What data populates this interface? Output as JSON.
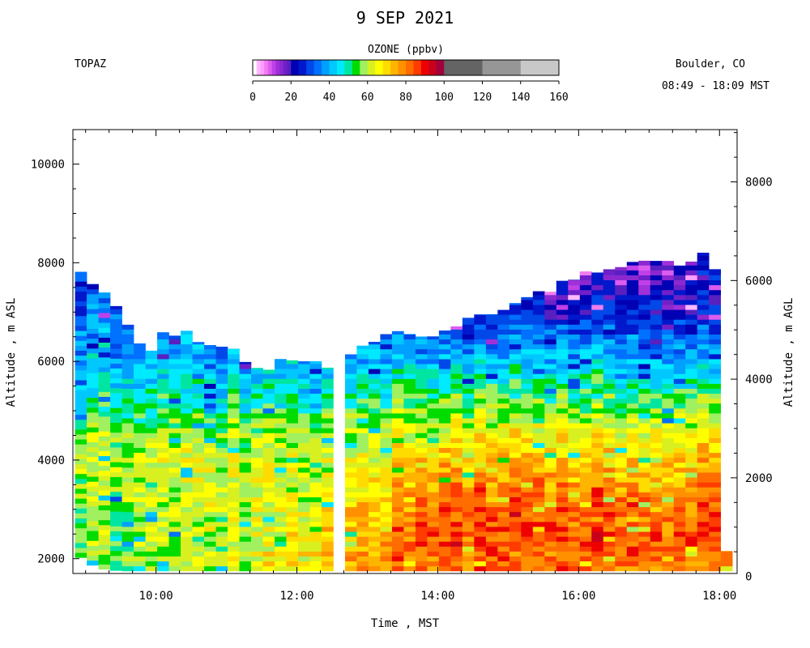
{
  "title": "9 SEP 2021",
  "station": "TOPAZ",
  "location": "Boulder, CO",
  "time_range": "08:49 - 18:09 MST",
  "colorbar": {
    "title": "OZONE (ppbv)",
    "ticks": [
      0,
      20,
      40,
      60,
      80,
      100,
      120,
      140,
      160
    ],
    "range": [
      0,
      160
    ],
    "bins": [
      {
        "from": 0,
        "to": 2,
        "color": "#ffffff"
      },
      {
        "from": 2,
        "to": 4,
        "color": "#ffb8ff"
      },
      {
        "from": 4,
        "to": 6,
        "color": "#ff9cff"
      },
      {
        "from": 6,
        "to": 8,
        "color": "#f07cf0"
      },
      {
        "from": 8,
        "to": 10,
        "color": "#dc5cf0"
      },
      {
        "from": 10,
        "to": 12,
        "color": "#c040e8"
      },
      {
        "from": 12,
        "to": 14,
        "color": "#a030d8"
      },
      {
        "from": 14,
        "to": 16,
        "color": "#8c28d0"
      },
      {
        "from": 16,
        "to": 18,
        "color": "#7020c8"
      },
      {
        "from": 18,
        "to": 20,
        "color": "#5820c0"
      },
      {
        "from": 20,
        "to": 24,
        "color": "#0000b4"
      },
      {
        "from": 24,
        "to": 28,
        "color": "#0018cc"
      },
      {
        "from": 28,
        "to": 32,
        "color": "#0048e8"
      },
      {
        "from": 32,
        "to": 36,
        "color": "#0070ff"
      },
      {
        "from": 36,
        "to": 40,
        "color": "#00a0ff"
      },
      {
        "from": 40,
        "to": 44,
        "color": "#00c8ff"
      },
      {
        "from": 44,
        "to": 48,
        "color": "#00eaff"
      },
      {
        "from": 48,
        "to": 52,
        "color": "#00e6a0"
      },
      {
        "from": 52,
        "to": 56,
        "color": "#00dc00"
      },
      {
        "from": 56,
        "to": 60,
        "color": "#a0f060"
      },
      {
        "from": 60,
        "to": 64,
        "color": "#d8f020"
      },
      {
        "from": 64,
        "to": 68,
        "color": "#ffff00"
      },
      {
        "from": 68,
        "to": 72,
        "color": "#ffdc00"
      },
      {
        "from": 72,
        "to": 76,
        "color": "#ffb400"
      },
      {
        "from": 76,
        "to": 80,
        "color": "#ff9000"
      },
      {
        "from": 80,
        "to": 84,
        "color": "#ff6c00"
      },
      {
        "from": 84,
        "to": 88,
        "color": "#ff3c00"
      },
      {
        "from": 88,
        "to": 92,
        "color": "#ee0000"
      },
      {
        "from": 92,
        "to": 96,
        "color": "#c8001c"
      },
      {
        "from": 96,
        "to": 100,
        "color": "#a0003c"
      },
      {
        "from": 100,
        "to": 120,
        "color": "#646464"
      },
      {
        "from": 120,
        "to": 140,
        "color": "#969696"
      },
      {
        "from": 140,
        "to": 160,
        "color": "#c8c8c8"
      }
    ]
  },
  "chart_data": {
    "type": "heatmap",
    "title": "9 SEP 2021",
    "xlabel": "Time , MST",
    "ylabel_left": "Altitude , m ASL",
    "ylabel_right": "Altitude , m AGL",
    "x_ticks": [
      "10:00",
      "12:00",
      "14:00",
      "16:00",
      "18:00"
    ],
    "x_range_hours": [
      8.82,
      18.25
    ],
    "y_left_ticks": [
      2000,
      4000,
      6000,
      8000,
      10000
    ],
    "y_left_range": [
      1700,
      10700
    ],
    "y_right_ticks": [
      0,
      2000,
      4000,
      6000,
      8000
    ],
    "value_units": "ppbv",
    "profile_interval_minutes": 10,
    "gaps": [
      [
        12.5,
        12.67
      ]
    ],
    "profiles": [
      {
        "time": 8.85,
        "top": 7900,
        "base": 2100
      },
      {
        "time": 9.17,
        "top": 7450,
        "base": 1800
      },
      {
        "time": 9.5,
        "top": 7100,
        "base": 1750
      },
      {
        "time": 9.83,
        "top": 6100,
        "base": 1750
      },
      {
        "time": 10.17,
        "top": 6650,
        "base": 1750
      },
      {
        "time": 10.5,
        "top": 6500,
        "base": 1750
      },
      {
        "time": 10.83,
        "top": 6300,
        "base": 1750
      },
      {
        "time": 11.17,
        "top": 6200,
        "base": 1750
      },
      {
        "time": 11.5,
        "top": 5850,
        "base": 1750
      },
      {
        "time": 11.83,
        "top": 6050,
        "base": 1750
      },
      {
        "time": 12.17,
        "top": 5950,
        "base": 1750
      },
      {
        "time": 12.45,
        "top": 5850,
        "base": 1750
      },
      {
        "time": 12.67,
        "top": 6100,
        "base": 1750
      },
      {
        "time": 13.0,
        "top": 6250,
        "base": 1750
      },
      {
        "time": 13.33,
        "top": 6550,
        "base": 1750
      },
      {
        "time": 13.67,
        "top": 6500,
        "base": 1750
      },
      {
        "time": 14.0,
        "top": 6600,
        "base": 1750
      },
      {
        "time": 14.33,
        "top": 6800,
        "base": 1750
      },
      {
        "time": 14.67,
        "top": 7000,
        "base": 1750
      },
      {
        "time": 15.0,
        "top": 7100,
        "base": 1750
      },
      {
        "time": 15.33,
        "top": 7300,
        "base": 1750
      },
      {
        "time": 15.67,
        "top": 7550,
        "base": 1750
      },
      {
        "time": 16.0,
        "top": 7700,
        "base": 1750
      },
      {
        "time": 16.33,
        "top": 7800,
        "base": 1750
      },
      {
        "time": 16.67,
        "top": 7900,
        "base": 1750
      },
      {
        "time": 17.0,
        "top": 7950,
        "base": 1750
      },
      {
        "time": 17.33,
        "top": 8000,
        "base": 1750
      },
      {
        "time": 17.67,
        "top": 8100,
        "base": 1750
      },
      {
        "time": 17.92,
        "top": 8150,
        "base": 1750
      },
      {
        "time": 18.15,
        "top": 2200,
        "base": 1750
      }
    ],
    "ozone_profile_keypoints": [
      {
        "time": 9.0,
        "levels": [
          [
            1800,
            55
          ],
          [
            3000,
            56
          ],
          [
            4000,
            60
          ],
          [
            4600,
            54
          ],
          [
            5200,
            47
          ],
          [
            6000,
            40
          ],
          [
            7000,
            33
          ],
          [
            8000,
            30
          ]
        ]
      },
      {
        "time": 11.0,
        "levels": [
          [
            1800,
            60
          ],
          [
            3000,
            61
          ],
          [
            4000,
            63
          ],
          [
            4600,
            58
          ],
          [
            5300,
            48
          ],
          [
            6000,
            40
          ],
          [
            7000,
            32
          ]
        ]
      },
      {
        "time": 12.5,
        "levels": [
          [
            1800,
            76
          ],
          [
            2200,
            72
          ],
          [
            2800,
            68
          ],
          [
            3500,
            63
          ],
          [
            4500,
            59
          ],
          [
            5300,
            50
          ],
          [
            6000,
            40
          ]
        ]
      },
      {
        "time": 14.0,
        "levels": [
          [
            1800,
            80
          ],
          [
            2600,
            84
          ],
          [
            3200,
            80
          ],
          [
            4000,
            70
          ],
          [
            4600,
            63
          ],
          [
            5200,
            55
          ],
          [
            6000,
            40
          ],
          [
            6800,
            26
          ]
        ]
      },
      {
        "time": 16.0,
        "levels": [
          [
            1800,
            82
          ],
          [
            2500,
            86
          ],
          [
            3200,
            83
          ],
          [
            4000,
            73
          ],
          [
            4800,
            62
          ],
          [
            5500,
            52
          ],
          [
            6200,
            40
          ],
          [
            7000,
            27
          ],
          [
            7800,
            16
          ]
        ]
      },
      {
        "time": 18.0,
        "levels": [
          [
            1800,
            80
          ],
          [
            2500,
            86
          ],
          [
            3200,
            82
          ],
          [
            4000,
            74
          ],
          [
            4800,
            63
          ],
          [
            5500,
            50
          ],
          [
            6200,
            38
          ],
          [
            7000,
            26
          ],
          [
            8000,
            22
          ]
        ]
      }
    ]
  }
}
